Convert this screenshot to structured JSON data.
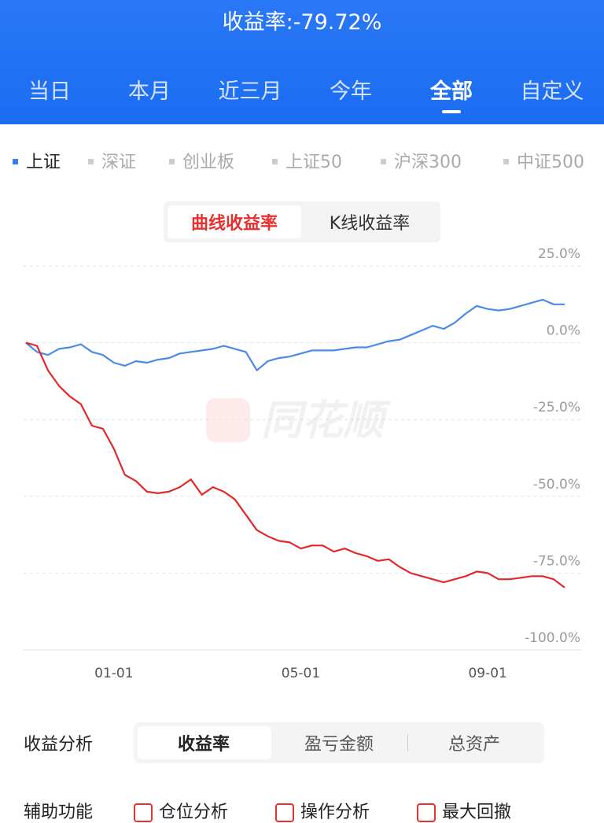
{
  "header": {
    "title": "收益率:-79.72%",
    "tabs": [
      "当日",
      "本月",
      "近三月",
      "今年",
      "全部",
      "自定义"
    ],
    "active_tab": 4
  },
  "index_tabs": {
    "items": [
      "上证",
      "深证",
      "创业板",
      "上证50",
      "沪深300",
      "中证500"
    ],
    "active": 0
  },
  "chart_toggle": {
    "items": [
      "曲线收益率",
      "K线收益率"
    ],
    "active": 0
  },
  "chart_data": {
    "type": "line",
    "watermark": "同花顺",
    "categories": [
      null,
      null,
      null,
      null,
      null,
      null,
      null,
      null,
      "01-01",
      null,
      null,
      null,
      null,
      null,
      null,
      null,
      null,
      null,
      null,
      null,
      null,
      null,
      null,
      null,
      null,
      "05-01",
      null,
      null,
      null,
      null,
      null,
      null,
      null,
      null,
      null,
      null,
      null,
      null,
      null,
      null,
      null,
      null,
      "09-01",
      null,
      null,
      null,
      null,
      null,
      null,
      null
    ],
    "series": [
      {
        "color": "#4a8ae8",
        "values": [
          0,
          -3,
          -4,
          -2,
          -1.5,
          -0.5,
          -3,
          -4,
          -6.5,
          -7.5,
          -6,
          -6.5,
          -5.5,
          -5,
          -3.5,
          -3,
          -2.5,
          -2,
          -1,
          -2,
          -3,
          -9,
          -6,
          -5,
          -4.5,
          -3.5,
          -2.5,
          -2.5,
          -2.5,
          -2,
          -1.5,
          -1.5,
          -0.5,
          0.5,
          1,
          2.5,
          4,
          5.5,
          4.5,
          6.5,
          9.5,
          12,
          11,
          10.5,
          11,
          12,
          13,
          14,
          12.5,
          12.5
        ]
      },
      {
        "color": "#e3282c",
        "values": [
          0,
          -1,
          -9,
          -14,
          -17.5,
          -20,
          -27,
          -28,
          -34.5,
          -43,
          -45,
          -48.5,
          -49,
          -48.5,
          -47,
          -44.5,
          -49.5,
          -47,
          -48.5,
          -51,
          -56,
          -61,
          -63,
          -64.5,
          -65,
          -67,
          -66,
          -66,
          -68,
          -67,
          -68.5,
          -69.5,
          -71,
          -70.5,
          -73,
          -75,
          -76,
          -77,
          -78,
          -77,
          -76,
          -74.5,
          -75,
          -77,
          -77,
          -76.5,
          -76,
          -76,
          -77,
          -79.7
        ]
      }
    ],
    "ylim": [
      -100,
      25
    ],
    "yticks": [
      {
        "value": 25,
        "label": "25.0%"
      },
      {
        "value": 0,
        "label": "0.0%"
      },
      {
        "value": -25,
        "label": "-25.0%"
      },
      {
        "value": -50,
        "label": "-50.0%"
      },
      {
        "value": -75,
        "label": "-75.0%"
      },
      {
        "value": -100,
        "label": "-100.0%"
      }
    ],
    "grid": true
  },
  "analysis": {
    "label": "收益分析",
    "options": [
      "收益率",
      "盈亏金额",
      "总资产"
    ],
    "active": 0
  },
  "tools": {
    "label": "辅助功能",
    "options": [
      "仓位分析",
      "操作分析",
      "最大回撤"
    ]
  }
}
